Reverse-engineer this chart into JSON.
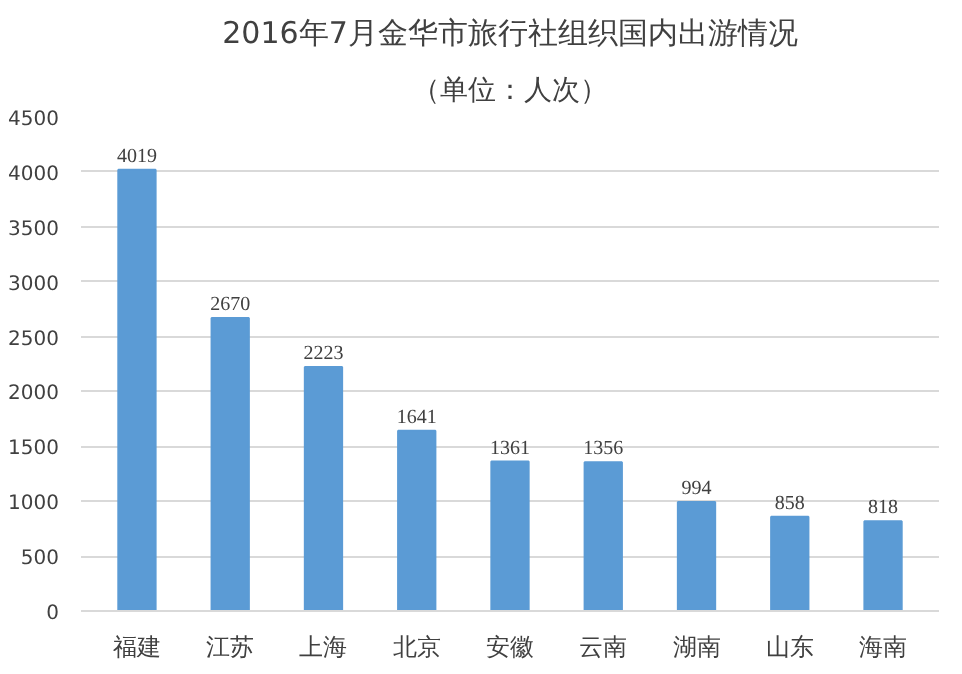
{
  "chart_data": {
    "type": "bar",
    "title": "2016年7月金华市旅行社组织国内出游情况",
    "subtitle": "（单位：人次）",
    "categories": [
      "福建",
      "江苏",
      "上海",
      "北京",
      "安徽",
      "云南",
      "湖南",
      "山东",
      "海南"
    ],
    "values": [
      4019,
      2670,
      2223,
      1641,
      1361,
      1356,
      994,
      858,
      818
    ],
    "color": "#5b9bd5",
    "ylim": [
      0,
      4500
    ],
    "yticks": [
      0,
      500,
      1000,
      1500,
      2000,
      2500,
      3000,
      3500,
      4000,
      4500
    ],
    "grid": "y",
    "data_labels": true
  }
}
